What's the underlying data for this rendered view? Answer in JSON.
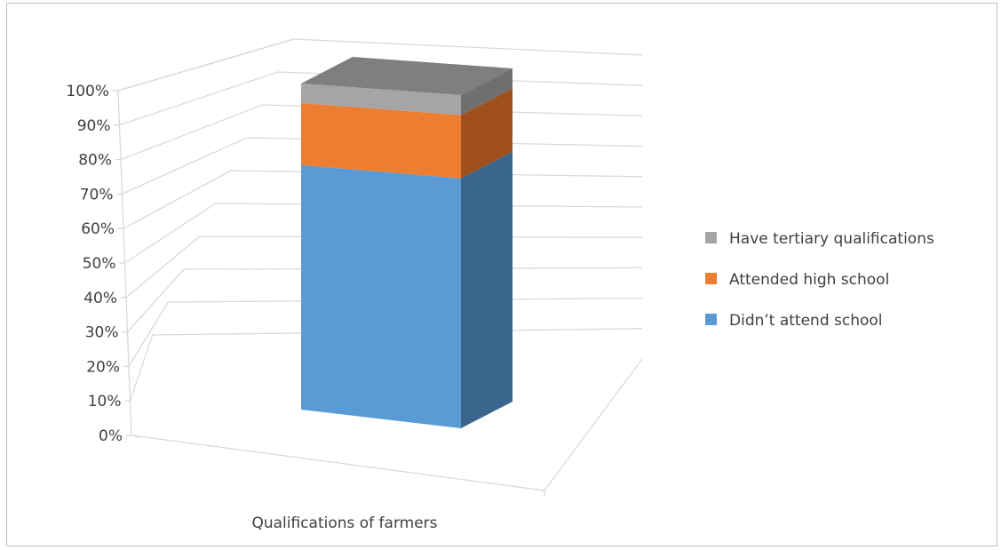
{
  "chart_data": {
    "type": "bar",
    "style": "3d-stacked-100-percent",
    "title": "",
    "categories": [
      "Qualifications of farmers"
    ],
    "series": [
      {
        "name": "Didn’t attend school",
        "values": [
          75
        ],
        "color": "#5b9bd5",
        "side_color": "#3a668d"
      },
      {
        "name": "Attended high school",
        "values": [
          19
        ],
        "color": "#ed7d31",
        "side_color": "#9f501c"
      },
      {
        "name": "Have tertiary qualifications",
        "values": [
          6
        ],
        "color": "#a5a5a5",
        "side_color": "#6f6f6f",
        "top_color": "#7f7f7f"
      }
    ],
    "yticks": [
      "0%",
      "10%",
      "20%",
      "30%",
      "40%",
      "50%",
      "60%",
      "70%",
      "80%",
      "90%",
      "100%"
    ],
    "ylim": [
      0,
      100
    ],
    "grid": true,
    "legend_position": "right",
    "gridline_color": "#d9d9d9"
  }
}
